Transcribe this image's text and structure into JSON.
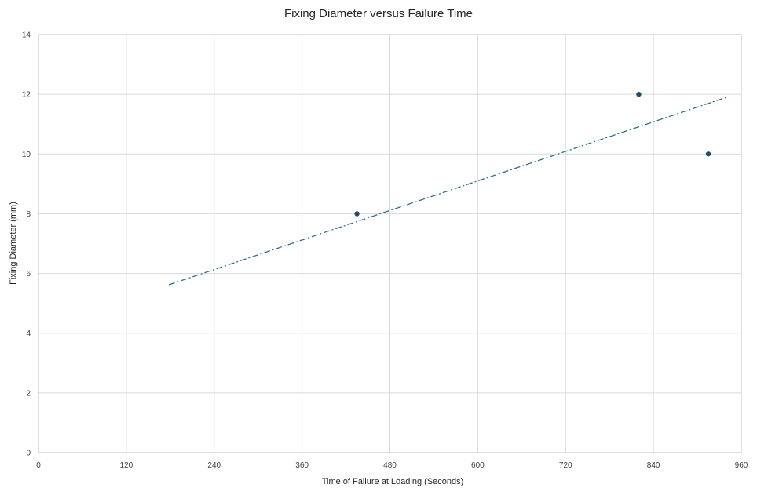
{
  "chart_data": {
    "type": "scatter",
    "title": "Fixing Diameter versus Failure Time",
    "xlabel": "Time of Failure at Loading (Seconds)",
    "ylabel": "Fixing Diameter (mm)",
    "xlim": [
      0,
      960
    ],
    "ylim": [
      0,
      14
    ],
    "x_ticks": [
      0,
      120,
      240,
      360,
      480,
      600,
      720,
      840,
      960
    ],
    "y_ticks": [
      0,
      2,
      4,
      6,
      8,
      10,
      12,
      14
    ],
    "grid": true,
    "legend": "none",
    "series": [
      {
        "points": [
          {
            "x": 435,
            "y": 8
          },
          {
            "x": 820,
            "y": 12
          },
          {
            "x": 915,
            "y": 10
          }
        ],
        "color": "#1f4e6b"
      }
    ],
    "trendline": {
      "type": "linear",
      "style": "dash-dot",
      "color": "#2e6f8e",
      "from": {
        "x": 178,
        "y": 5.62
      },
      "to": {
        "x": 940,
        "y": 11.9
      }
    }
  }
}
